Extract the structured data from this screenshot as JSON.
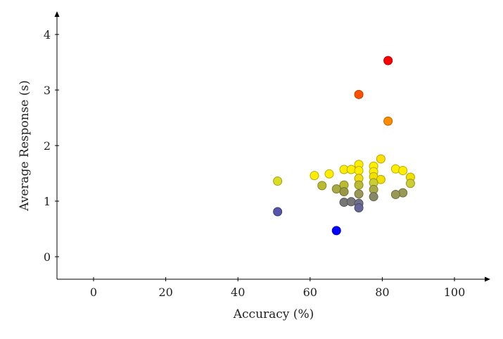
{
  "chart_data": {
    "type": "scatter",
    "title": "",
    "xlabel": "Accuracy (%)",
    "ylabel": "Average Response (s)",
    "xlim": [
      -10,
      110
    ],
    "ylim": [
      -0.4,
      4.4
    ],
    "xticks": [
      0,
      20,
      40,
      60,
      80,
      100
    ],
    "yticks": [
      0,
      1,
      2,
      3,
      4
    ],
    "grid": false,
    "legend": "none",
    "points": [
      {
        "x": 81.6,
        "y": 3.53,
        "color": "#ff0000"
      },
      {
        "x": 73.5,
        "y": 2.92,
        "color": "#ff5000"
      },
      {
        "x": 81.6,
        "y": 2.44,
        "color": "#ff8c00"
      },
      {
        "x": 79.6,
        "y": 1.76,
        "color": "#ffe000"
      },
      {
        "x": 73.5,
        "y": 1.66,
        "color": "#ffee00"
      },
      {
        "x": 77.6,
        "y": 1.63,
        "color": "#ffee00"
      },
      {
        "x": 83.7,
        "y": 1.58,
        "color": "#ffee00"
      },
      {
        "x": 69.4,
        "y": 1.57,
        "color": "#ffee00"
      },
      {
        "x": 71.4,
        "y": 1.57,
        "color": "#ffee00"
      },
      {
        "x": 85.7,
        "y": 1.55,
        "color": "#ffee00"
      },
      {
        "x": 73.5,
        "y": 1.55,
        "color": "#ffee00"
      },
      {
        "x": 77.6,
        "y": 1.53,
        "color": "#ffee00"
      },
      {
        "x": 65.3,
        "y": 1.49,
        "color": "#ffee00"
      },
      {
        "x": 61.2,
        "y": 1.46,
        "color": "#ffee00"
      },
      {
        "x": 77.6,
        "y": 1.44,
        "color": "#f2e000"
      },
      {
        "x": 87.8,
        "y": 1.43,
        "color": "#f2e000"
      },
      {
        "x": 73.5,
        "y": 1.41,
        "color": "#eedd10"
      },
      {
        "x": 79.6,
        "y": 1.39,
        "color": "#f2e000"
      },
      {
        "x": 51.0,
        "y": 1.36,
        "color": "#dddd20"
      },
      {
        "x": 77.6,
        "y": 1.33,
        "color": "#cccc33"
      },
      {
        "x": 87.8,
        "y": 1.32,
        "color": "#cccc33"
      },
      {
        "x": 69.4,
        "y": 1.29,
        "color": "#bbbb33"
      },
      {
        "x": 73.5,
        "y": 1.29,
        "color": "#bbbb33"
      },
      {
        "x": 63.3,
        "y": 1.28,
        "color": "#bbbb33"
      },
      {
        "x": 67.3,
        "y": 1.22,
        "color": "#aaaa44"
      },
      {
        "x": 77.6,
        "y": 1.21,
        "color": "#aaaa44"
      },
      {
        "x": 69.4,
        "y": 1.17,
        "color": "#999944"
      },
      {
        "x": 85.7,
        "y": 1.15,
        "color": "#999955"
      },
      {
        "x": 73.5,
        "y": 1.13,
        "color": "#999955"
      },
      {
        "x": 83.7,
        "y": 1.12,
        "color": "#999955"
      },
      {
        "x": 77.6,
        "y": 1.08,
        "color": "#888866"
      },
      {
        "x": 69.4,
        "y": 0.98,
        "color": "#777777"
      },
      {
        "x": 71.4,
        "y": 0.99,
        "color": "#777777"
      },
      {
        "x": 73.5,
        "y": 0.96,
        "color": "#707088"
      },
      {
        "x": 73.5,
        "y": 0.88,
        "color": "#666699"
      },
      {
        "x": 51.0,
        "y": 0.81,
        "color": "#5555aa"
      },
      {
        "x": 67.3,
        "y": 0.47,
        "color": "#0000ff"
      }
    ]
  }
}
